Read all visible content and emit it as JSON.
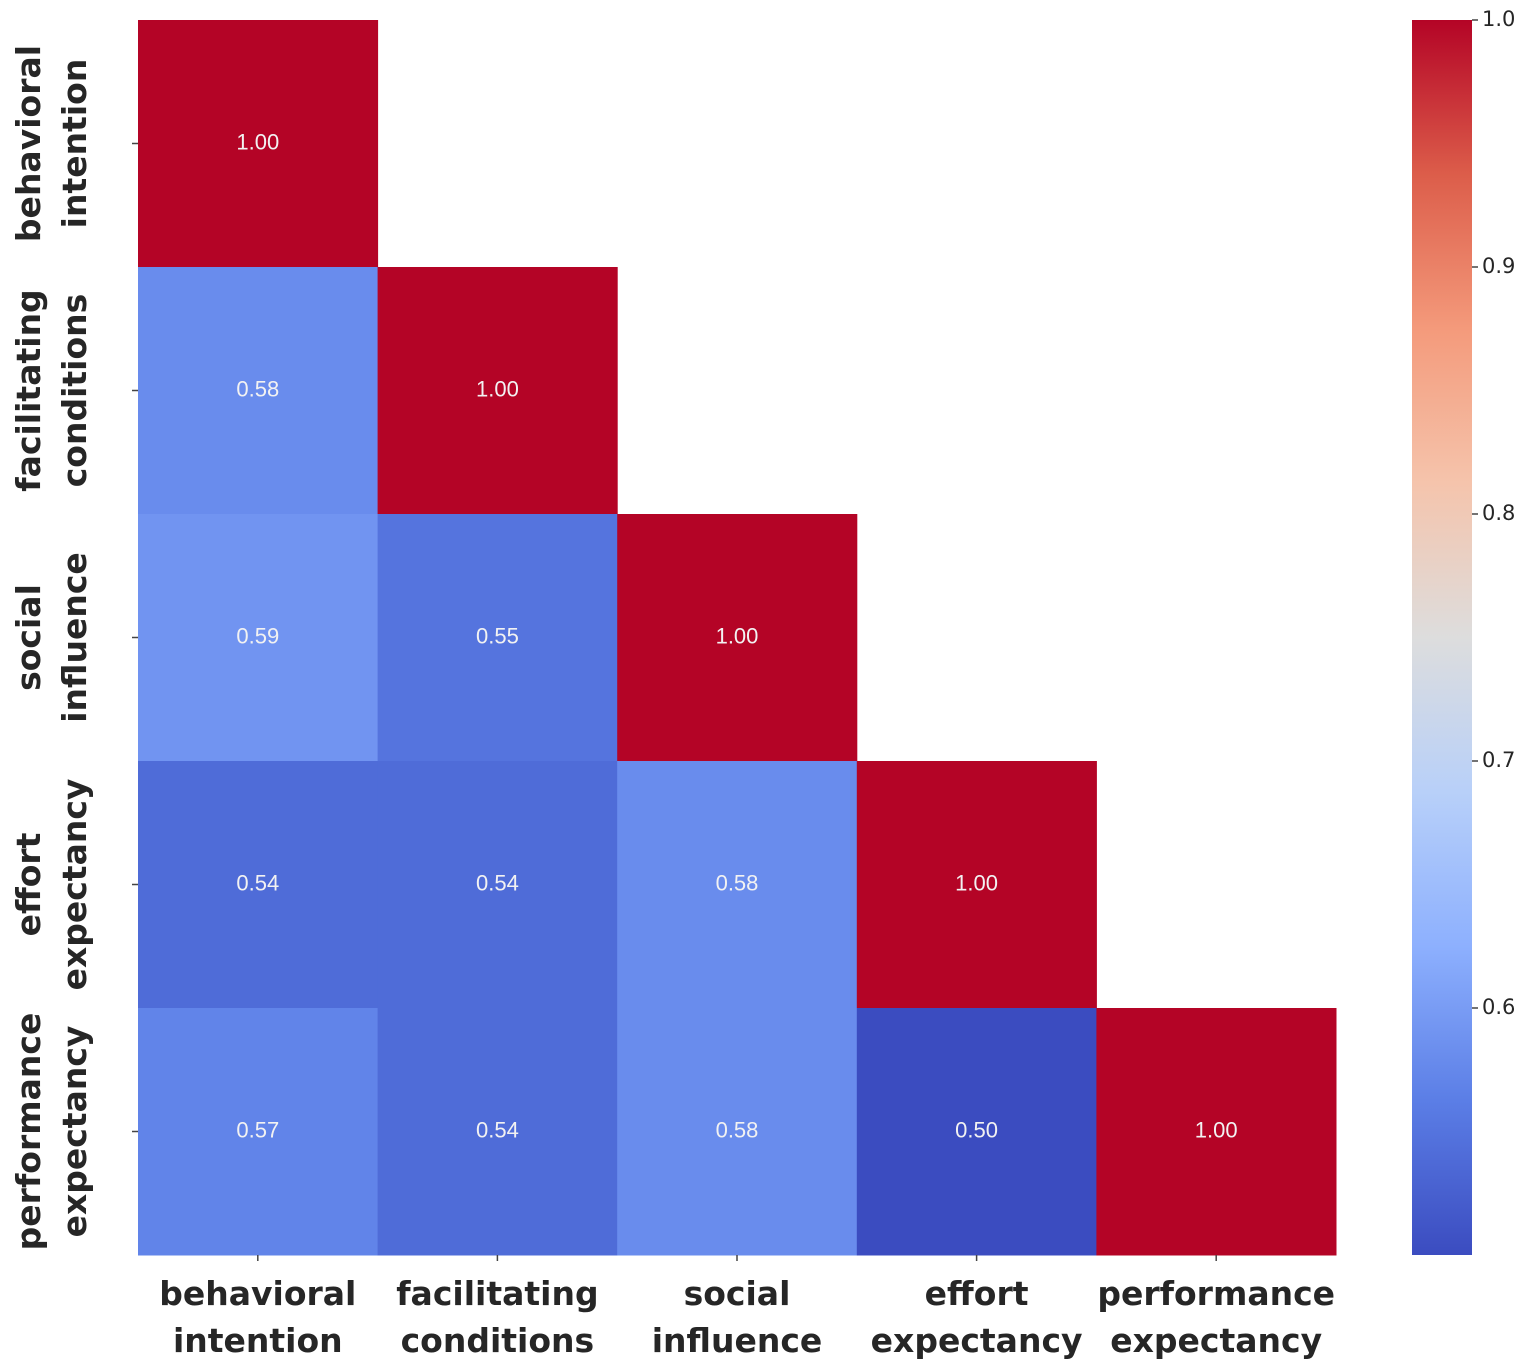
{
  "chart_data": {
    "type": "heatmap",
    "title": "",
    "row_labels": [
      [
        "behavioral",
        "intention"
      ],
      [
        "facilitating",
        "conditions"
      ],
      [
        "social",
        "influence"
      ],
      [
        "effort",
        "expectancy"
      ],
      [
        "performance",
        "expectancy"
      ]
    ],
    "col_labels": [
      [
        "behavioral",
        "intention"
      ],
      [
        "facilitating",
        "conditions"
      ],
      [
        "social",
        "influence"
      ],
      [
        "effort",
        "expectancy"
      ],
      [
        "performance",
        "expectancy"
      ]
    ],
    "values": [
      [
        1.0,
        null,
        null,
        null,
        null
      ],
      [
        0.58,
        1.0,
        null,
        null,
        null
      ],
      [
        0.59,
        0.55,
        1.0,
        null,
        null
      ],
      [
        0.54,
        0.54,
        0.58,
        1.0,
        null
      ],
      [
        0.57,
        0.54,
        0.58,
        0.5,
        1.0
      ]
    ],
    "mask": "upper-triangle",
    "colormap": "coolwarm",
    "colorbar": {
      "vmin": 0.5,
      "vmax": 1.0,
      "ticks": [
        "0.6",
        "0.7",
        "0.8",
        "0.9",
        "1.0"
      ]
    },
    "annotation_format": "0.00"
  }
}
